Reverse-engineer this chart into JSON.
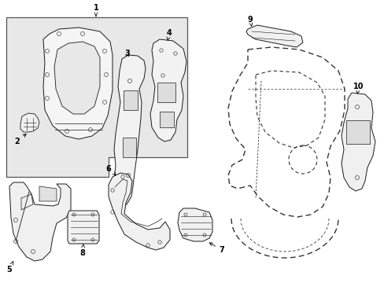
{
  "bg_color": "#ffffff",
  "box_bg": "#e8e8e8",
  "line_color": "#1a1a1a",
  "dashed_color": "#333333",
  "label_color": "#000000",
  "fig_width": 4.89,
  "fig_height": 3.6,
  "dpi": 100
}
